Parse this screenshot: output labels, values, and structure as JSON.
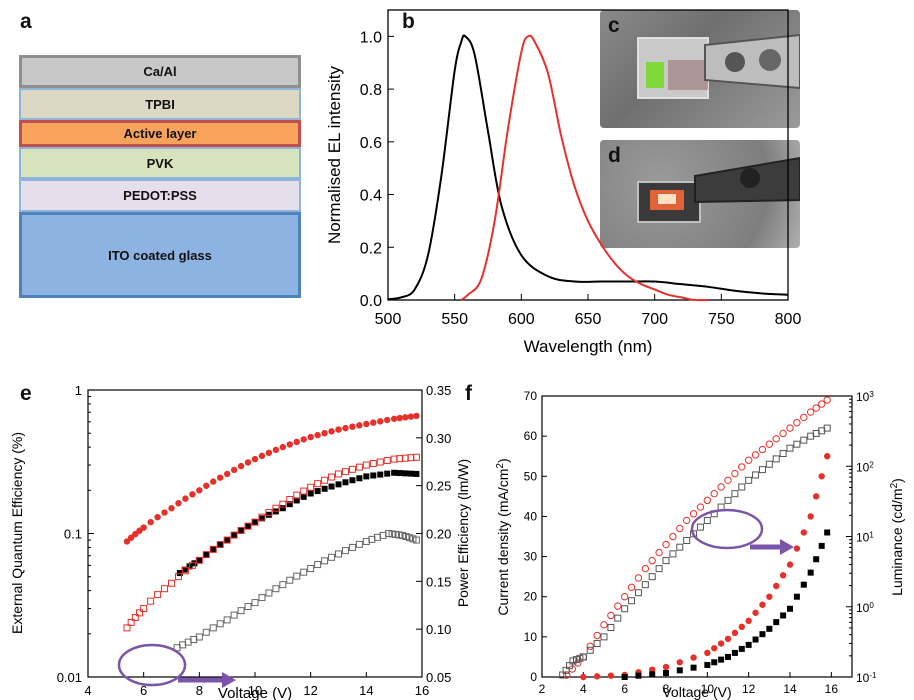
{
  "panels": {
    "a": "a",
    "b": "b",
    "c": "c",
    "d": "d",
    "e": "e",
    "f": "f"
  },
  "stack_layers": [
    {
      "label": "Ca/Al",
      "fill": "#c8c8c8",
      "border": "#8f8f8f"
    },
    {
      "label": "TPBI",
      "fill": "#ddd8c4",
      "border": "#8fb4dc"
    },
    {
      "label": "Active layer",
      "fill": "#f7a35c",
      "border": "#c0504d"
    },
    {
      "label": "PVK",
      "fill": "#d6e3bc",
      "border": "#8fb4dc"
    },
    {
      "label": "PEDOT:PSS",
      "fill": "#e5dfec",
      "border": "#8fb4dc"
    },
    {
      "label": "ITO coated glass",
      "fill": "#8db3e2",
      "border": "#4f81bd"
    }
  ],
  "chart_data": [
    {
      "id": "b",
      "type": "line",
      "xlabel": "Wavelength (nm)",
      "ylabel": "Normalised EL intensity",
      "xlim": [
        500,
        800
      ],
      "ylim": [
        0,
        1.1
      ],
      "xticks": [
        "500",
        "550",
        "600",
        "650",
        "700",
        "750",
        "800"
      ],
      "yticks": [
        "0.0",
        "0.2",
        "0.4",
        "0.6",
        "0.8",
        "1.0"
      ],
      "series": [
        {
          "color": "#000000",
          "x": [
            500,
            510,
            520,
            530,
            540,
            550,
            555,
            558,
            565,
            575,
            585,
            600,
            620,
            640,
            660,
            680,
            700,
            720,
            740,
            760,
            780,
            800
          ],
          "y": [
            0.003,
            0.01,
            0.04,
            0.17,
            0.47,
            0.87,
            0.98,
            1.0,
            0.93,
            0.64,
            0.36,
            0.17,
            0.09,
            0.07,
            0.07,
            0.07,
            0.07,
            0.06,
            0.05,
            0.035,
            0.025,
            0.02
          ]
        },
        {
          "color": "#e8302a",
          "x": [
            555,
            560,
            570,
            580,
            590,
            600,
            605,
            610,
            620,
            630,
            640,
            650,
            660,
            670,
            680,
            690,
            700,
            710,
            720,
            730,
            740
          ],
          "y": [
            0.0,
            0.02,
            0.08,
            0.3,
            0.65,
            0.94,
            1.0,
            0.98,
            0.86,
            0.62,
            0.43,
            0.3,
            0.21,
            0.14,
            0.09,
            0.06,
            0.04,
            0.02,
            0.01,
            0.0,
            0.0
          ]
        }
      ]
    },
    {
      "id": "e",
      "type": "scatter",
      "xlabel": "Voltage (V)",
      "ylabel": "External Quantum Efficiency (%)",
      "y2label": "Power Efficiency (lm/W)",
      "xlim": [
        4,
        16
      ],
      "ylim": [
        0.01,
        1
      ],
      "yscale": "log",
      "y2lim": [
        0.05,
        0.35
      ],
      "xticks": [
        "4",
        "6",
        "8",
        "10",
        "12",
        "14",
        "16"
      ],
      "yticks": [
        "0.01",
        "0.1",
        "1"
      ],
      "y2ticks": [
        "0.05",
        "0.10",
        "0.15",
        "0.20",
        "0.25",
        "0.30",
        "0.35"
      ],
      "series": [
        {
          "axis": "left",
          "marker": "circle-filled",
          "color": "#e8302a",
          "x": [
            5.4,
            6,
            7,
            8,
            9,
            10,
            11,
            12,
            13,
            14,
            15,
            15.8
          ],
          "y": [
            0.088,
            0.11,
            0.15,
            0.2,
            0.26,
            0.33,
            0.4,
            0.47,
            0.53,
            0.58,
            0.63,
            0.66
          ]
        },
        {
          "axis": "left",
          "marker": "square-filled",
          "color": "#000000",
          "x": [
            7.3,
            8,
            9,
            10,
            11,
            12,
            13,
            14,
            15,
            15.8
          ],
          "y": [
            0.053,
            0.065,
            0.09,
            0.12,
            0.15,
            0.19,
            0.22,
            0.25,
            0.265,
            0.26
          ]
        },
        {
          "axis": "left",
          "marker": "square-open",
          "color": "#e8302a",
          "x": [
            5.4,
            6,
            7,
            8,
            9,
            10,
            11,
            12,
            13,
            14,
            15,
            15.8
          ],
          "y": [
            0.022,
            0.03,
            0.045,
            0.065,
            0.09,
            0.12,
            0.16,
            0.21,
            0.26,
            0.3,
            0.33,
            0.34
          ]
        },
        {
          "axis": "left",
          "marker": "square-open",
          "color": "#666666",
          "x": [
            7.2,
            8,
            9,
            10,
            11,
            12,
            13,
            14,
            14.8,
            15.3,
            15.8
          ],
          "y": [
            0.016,
            0.019,
            0.025,
            0.033,
            0.044,
            0.057,
            0.072,
            0.088,
            0.1,
            0.097,
            0.09
          ]
        }
      ]
    },
    {
      "id": "f",
      "type": "scatter",
      "xlabel": "Voltage (V)",
      "ylabel": "Current density (mA/cm2)",
      "y2label": "Luminance (cd/m2)",
      "xlim": [
        2,
        17
      ],
      "ylim": [
        0,
        70
      ],
      "y2lim": [
        0.1,
        1000
      ],
      "y2scale": "log",
      "xticks": [
        "2",
        "4",
        "6",
        "8",
        "10",
        "12",
        "14",
        "16"
      ],
      "yticks": [
        "0",
        "10",
        "20",
        "30",
        "40",
        "50",
        "60",
        "70"
      ],
      "series": [
        {
          "axis": "left",
          "marker": "circle-filled",
          "color": "#e8302a",
          "x": [
            4,
            6,
            8,
            10,
            11,
            12,
            13,
            14,
            15,
            15.8
          ],
          "y": [
            0,
            0.5,
            2.5,
            6,
            9.5,
            14,
            20,
            28,
            40,
            55
          ]
        },
        {
          "axis": "left",
          "marker": "square-filled",
          "color": "#000000",
          "x": [
            6,
            8,
            10,
            11,
            12,
            13,
            14,
            15,
            15.8
          ],
          "y": [
            0,
            1,
            3,
            5,
            8,
            12,
            17,
            26,
            36
          ]
        },
        {
          "axis": "left",
          "marker": "circle-open",
          "color": "#e8302a",
          "x": [
            3.2,
            4,
            5,
            6,
            7,
            8,
            9,
            10,
            11,
            12,
            13,
            14,
            15,
            15.8
          ],
          "y": [
            0.5,
            5,
            13,
            20,
            27,
            33,
            39,
            44,
            49,
            54,
            58,
            62,
            66,
            69
          ]
        },
        {
          "axis": "left",
          "marker": "square-open",
          "color": "#555555",
          "x": [
            3,
            3.5,
            4,
            5,
            6,
            7,
            8,
            9,
            10,
            11,
            12,
            13,
            14,
            15,
            15.8
          ],
          "y": [
            0.5,
            4,
            5,
            10,
            17,
            23,
            29,
            34,
            39,
            44,
            49,
            53,
            57,
            60,
            62
          ]
        }
      ]
    }
  ]
}
